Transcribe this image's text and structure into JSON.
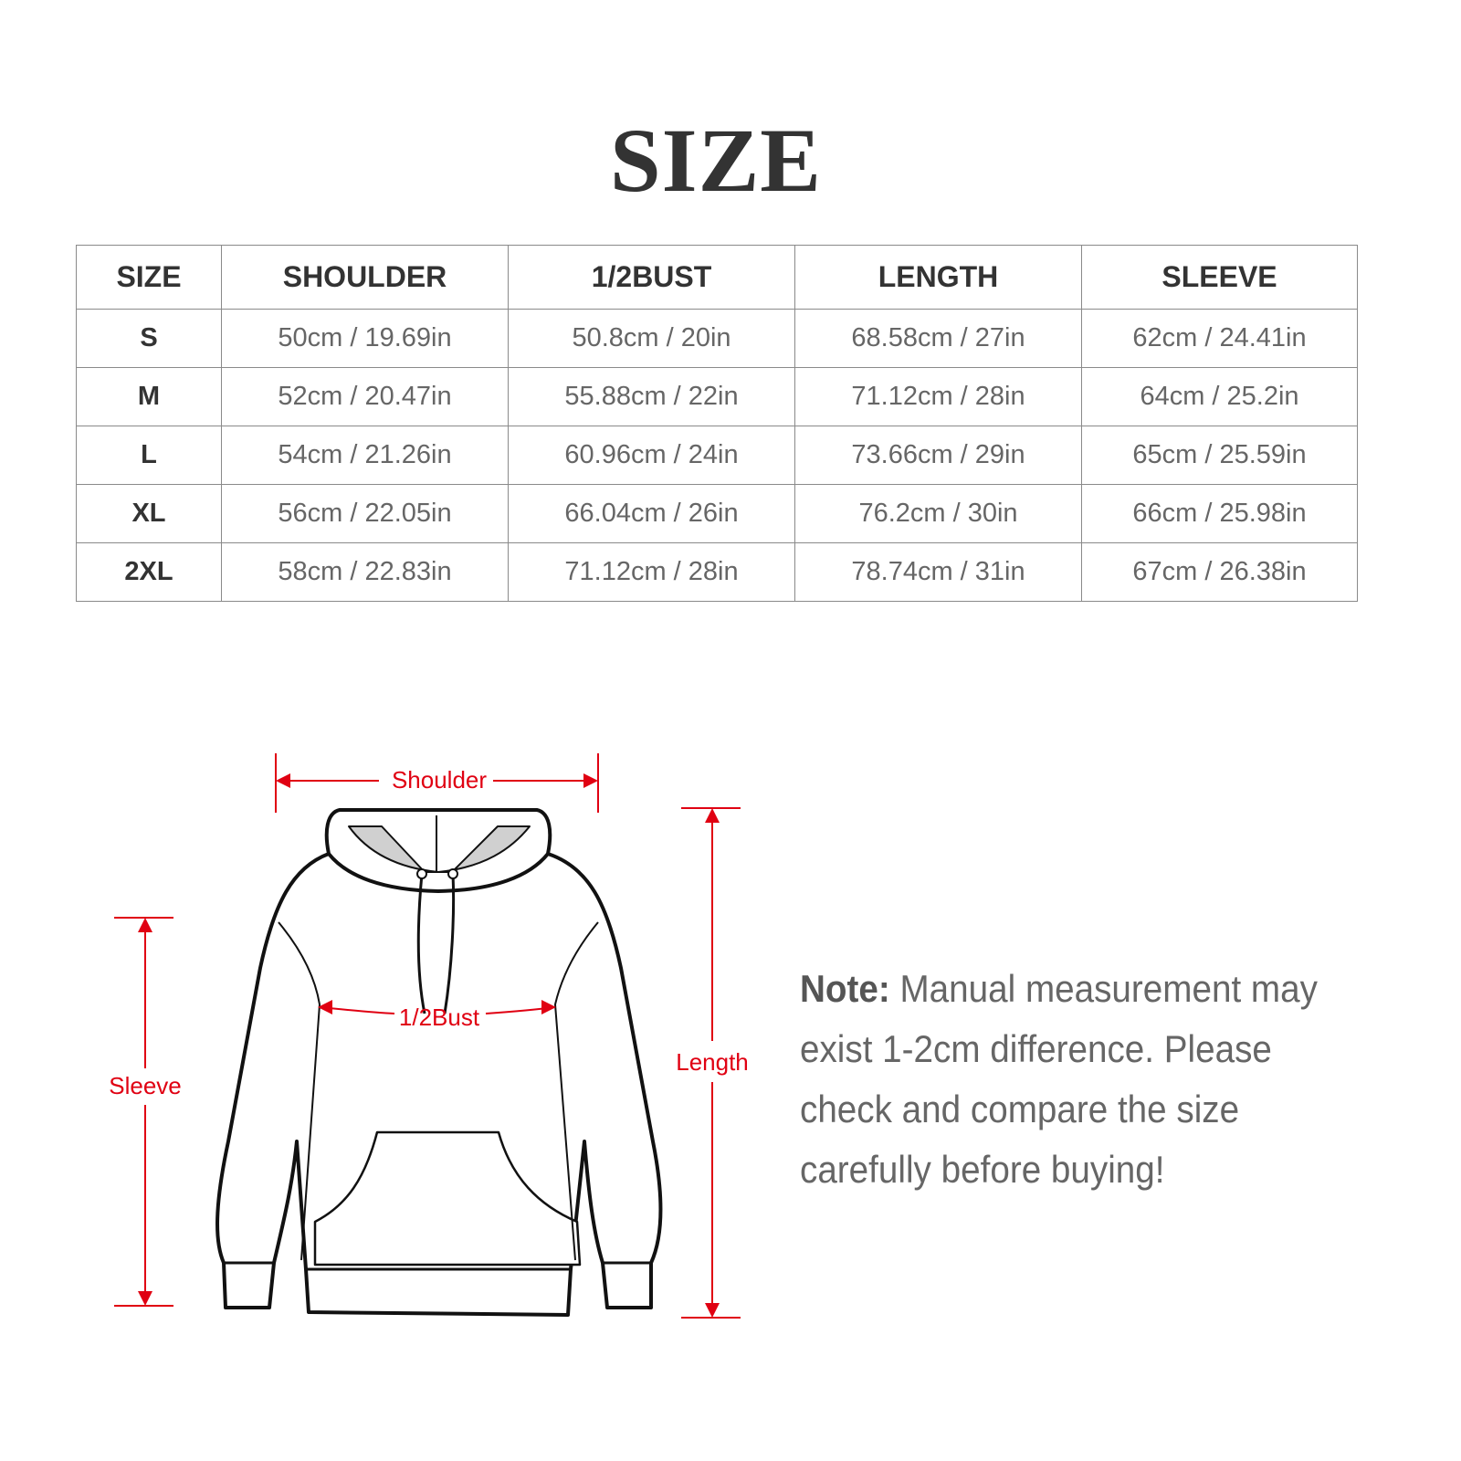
{
  "title": "SIZE",
  "table": {
    "headers": [
      "SIZE",
      "SHOULDER",
      "1/2BUST",
      "LENGTH",
      "SLEEVE"
    ],
    "rows": [
      [
        "S",
        "50cm / 19.69in",
        "50.8cm / 20in",
        "68.58cm / 27in",
        "62cm / 24.41in"
      ],
      [
        "M",
        "52cm / 20.47in",
        "55.88cm / 22in",
        "71.12cm / 28in",
        "64cm / 25.2in"
      ],
      [
        "L",
        "54cm / 21.26in",
        "60.96cm / 24in",
        "73.66cm / 29in",
        "65cm / 25.59in"
      ],
      [
        "XL",
        "56cm / 22.05in",
        "66.04cm / 26in",
        "76.2cm / 30in",
        "66cm / 25.98in"
      ],
      [
        "2XL",
        "58cm / 22.83in",
        "71.12cm / 28in",
        "78.74cm / 31in",
        "67cm / 26.38in"
      ]
    ]
  },
  "diagram": {
    "shoulder_label": "Shoulder",
    "bust_label": "1/2Bust",
    "sleeve_label": "Sleeve",
    "length_label": "Length",
    "accent_color": "#e00012"
  },
  "note": {
    "label": "Note:",
    "text": " Manual measurement may exist 1-2cm difference. Please check and compare the size carefully before buying!"
  }
}
